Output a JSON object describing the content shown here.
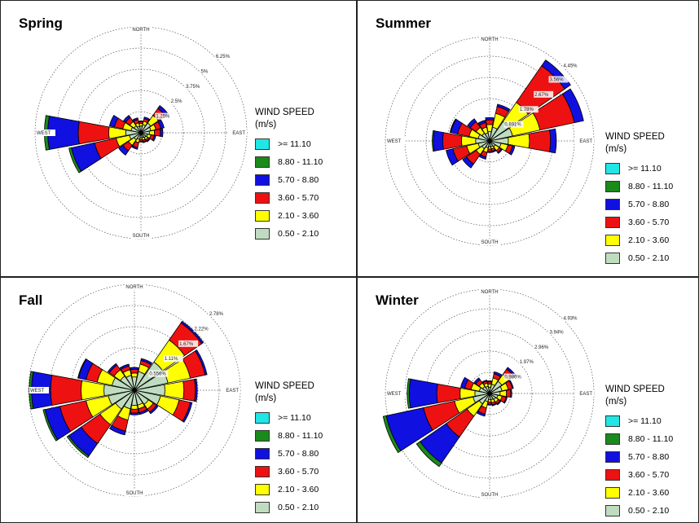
{
  "legend_title": "WIND SPEED (m/s)",
  "direction_labels": {
    "north": "NORTH",
    "south": "SOUTH",
    "east": "EAST",
    "west": "WEST"
  },
  "speed_bins": [
    {
      "label": ">= 11.10",
      "color": "#22e5e5"
    },
    {
      "label": "8.80 - 11.10",
      "color": "#1a8a1a"
    },
    {
      "label": "5.70 - 8.80",
      "color": "#1010e0"
    },
    {
      "label": "3.60 - 5.70",
      "color": "#ee1111"
    },
    {
      "label": "2.10 - 3.60",
      "color": "#ffff00"
    },
    {
      "label": "0.50 - 2.10",
      "color": "#c0dcc0"
    }
  ],
  "chart_data": [
    {
      "type": "windrose",
      "title": "Spring",
      "ring_labels": [
        "1.25%",
        "2.5%",
        "3.75%",
        "5%",
        "6.25%"
      ],
      "ring_values": [
        1.25,
        2.5,
        3.75,
        5,
        6.25
      ],
      "sectors": 16,
      "bins": [
        "0.50 - 2.10",
        "2.10 - 3.60",
        "3.60 - 5.70",
        "5.70 - 8.80",
        "8.80 - 11.10",
        ">= 11.10"
      ],
      "directions": [
        {
          "dir": "N",
          "values": [
            0.4,
            0.15,
            0.1,
            0.05,
            0,
            0
          ]
        },
        {
          "dir": "NNE",
          "values": [
            0.5,
            0.2,
            0.15,
            0.1,
            0,
            0
          ]
        },
        {
          "dir": "NE",
          "values": [
            0.7,
            0.55,
            0.5,
            0.2,
            0,
            0
          ]
        },
        {
          "dir": "ENE",
          "values": [
            0.6,
            0.3,
            0.3,
            0.2,
            0,
            0
          ]
        },
        {
          "dir": "E",
          "values": [
            0.5,
            0.3,
            0.35,
            0.15,
            0,
            0
          ]
        },
        {
          "dir": "ESE",
          "values": [
            0.4,
            0.2,
            0.2,
            0.1,
            0,
            0
          ]
        },
        {
          "dir": "SE",
          "values": [
            0.35,
            0.15,
            0.1,
            0.05,
            0,
            0
          ]
        },
        {
          "dir": "SSE",
          "values": [
            0.3,
            0.15,
            0.1,
            0.05,
            0,
            0
          ]
        },
        {
          "dir": "S",
          "values": [
            0.3,
            0.1,
            0.1,
            0.05,
            0,
            0
          ]
        },
        {
          "dir": "SSW",
          "values": [
            0.4,
            0.2,
            0.3,
            0.1,
            0,
            0
          ]
        },
        {
          "dir": "SW",
          "values": [
            0.5,
            0.4,
            0.4,
            0.3,
            0,
            0
          ]
        },
        {
          "dir": "WSW",
          "values": [
            0.7,
            0.8,
            1.3,
            1.4,
            0.15,
            0
          ]
        },
        {
          "dir": "W",
          "values": [
            0.9,
            1.0,
            1.8,
            1.8,
            0.2,
            0
          ]
        },
        {
          "dir": "WNW",
          "values": [
            0.6,
            0.5,
            0.5,
            0.3,
            0,
            0
          ]
        },
        {
          "dir": "NW",
          "values": [
            0.5,
            0.3,
            0.3,
            0.15,
            0,
            0
          ]
        },
        {
          "dir": "NNW",
          "values": [
            0.4,
            0.2,
            0.2,
            0.1,
            0,
            0
          ]
        }
      ]
    },
    {
      "type": "windrose",
      "title": "Summer",
      "ring_labels": [
        "0.891%",
        "1.78%",
        "2.67%",
        "3.56%",
        "4.45%"
      ],
      "ring_values": [
        0.891,
        1.78,
        2.67,
        3.56,
        4.45
      ],
      "sectors": 16,
      "bins": [
        "0.50 - 2.10",
        "2.10 - 3.60",
        "3.60 - 5.70",
        "5.70 - 8.80",
        "8.80 - 11.10",
        ">= 11.10"
      ],
      "directions": [
        {
          "dir": "N",
          "values": [
            0.4,
            0.3,
            0.2,
            0.1,
            0,
            0
          ]
        },
        {
          "dir": "NNE",
          "values": [
            0.6,
            0.6,
            0.3,
            0.1,
            0,
            0
          ]
        },
        {
          "dir": "NE",
          "values": [
            1.0,
            1.0,
            1.9,
            0.3,
            0,
            0
          ]
        },
        {
          "dir": "ENE",
          "values": [
            1.0,
            1.2,
            1.5,
            0.4,
            0,
            0
          ]
        },
        {
          "dir": "E",
          "values": [
            0.8,
            0.9,
            0.9,
            0.25,
            0,
            0
          ]
        },
        {
          "dir": "ESE",
          "values": [
            0.5,
            0.3,
            0.2,
            0.1,
            0,
            0
          ]
        },
        {
          "dir": "SE",
          "values": [
            0.3,
            0.2,
            0.1,
            0.05,
            0,
            0
          ]
        },
        {
          "dir": "SSE",
          "values": [
            0.25,
            0.1,
            0.1,
            0.05,
            0,
            0
          ]
        },
        {
          "dir": "S",
          "values": [
            0.25,
            0.1,
            0.1,
            0.05,
            0,
            0
          ]
        },
        {
          "dir": "SSW",
          "values": [
            0.3,
            0.2,
            0.2,
            0.1,
            0,
            0
          ]
        },
        {
          "dir": "SW",
          "values": [
            0.4,
            0.3,
            0.5,
            0.2,
            0,
            0
          ]
        },
        {
          "dir": "WSW",
          "values": [
            0.5,
            0.5,
            0.6,
            0.3,
            0,
            0
          ]
        },
        {
          "dir": "W",
          "values": [
            0.6,
            0.6,
            0.8,
            0.4,
            0.05,
            0
          ]
        },
        {
          "dir": "WNW",
          "values": [
            0.5,
            0.4,
            0.5,
            0.3,
            0.03,
            0
          ]
        },
        {
          "dir": "NW",
          "values": [
            0.4,
            0.3,
            0.3,
            0.15,
            0,
            0
          ]
        },
        {
          "dir": "NNW",
          "values": [
            0.35,
            0.25,
            0.2,
            0.1,
            0,
            0
          ]
        }
      ]
    },
    {
      "type": "windrose",
      "title": "Fall",
      "ring_labels": [
        "0.556%",
        "1.11%",
        "1.67%",
        "2.22%",
        "2.78%"
      ],
      "ring_values": [
        0.556,
        1.11,
        1.67,
        2.22,
        2.78
      ],
      "sectors": 16,
      "bins": [
        "0.50 - 2.10",
        "2.10 - 3.60",
        "3.60 - 5.70",
        "5.70 - 8.80",
        "8.80 - 11.10",
        ">= 11.10"
      ],
      "directions": [
        {
          "dir": "N",
          "values": [
            0.35,
            0.1,
            0.1,
            0.05,
            0,
            0
          ]
        },
        {
          "dir": "NNE",
          "values": [
            0.5,
            0.2,
            0.1,
            0.05,
            0,
            0
          ]
        },
        {
          "dir": "NE",
          "values": [
            0.9,
            0.7,
            0.55,
            0.05,
            0,
            0
          ]
        },
        {
          "dir": "ENE",
          "values": [
            0.9,
            0.6,
            0.4,
            0.05,
            0,
            0
          ]
        },
        {
          "dir": "E",
          "values": [
            0.8,
            0.5,
            0.3,
            0.05,
            0,
            0
          ]
        },
        {
          "dir": "ESE",
          "values": [
            0.7,
            0.5,
            0.3,
            0.05,
            0,
            0
          ]
        },
        {
          "dir": "SE",
          "values": [
            0.45,
            0.15,
            0.1,
            0.05,
            0,
            0
          ]
        },
        {
          "dir": "SSE",
          "values": [
            0.4,
            0.1,
            0.1,
            0.05,
            0,
            0
          ]
        },
        {
          "dir": "S",
          "values": [
            0.4,
            0.1,
            0.1,
            0.05,
            0,
            0
          ]
        },
        {
          "dir": "SSW",
          "values": [
            0.5,
            0.3,
            0.3,
            0.1,
            0,
            0
          ]
        },
        {
          "dir": "SW",
          "values": [
            0.6,
            0.5,
            0.6,
            0.4,
            0.05,
            0
          ]
        },
        {
          "dir": "WSW",
          "values": [
            0.7,
            0.6,
            0.7,
            0.4,
            0.05,
            0
          ]
        },
        {
          "dir": "W",
          "values": [
            0.8,
            0.6,
            0.8,
            0.5,
            0.06,
            0
          ]
        },
        {
          "dir": "WNW",
          "values": [
            0.6,
            0.4,
            0.3,
            0.2,
            0.02,
            0
          ]
        },
        {
          "dir": "NW",
          "values": [
            0.45,
            0.2,
            0.15,
            0.05,
            0,
            0
          ]
        },
        {
          "dir": "NNW",
          "values": [
            0.4,
            0.15,
            0.1,
            0.05,
            0,
            0
          ]
        }
      ]
    },
    {
      "type": "windrose",
      "title": "Winter",
      "ring_labels": [
        "0.986%",
        "1.97%",
        "2.96%",
        "3.94%",
        "4.93%"
      ],
      "ring_values": [
        0.986,
        1.97,
        2.96,
        3.94,
        4.93
      ],
      "sectors": 16,
      "bins": [
        "0.50 - 2.10",
        "2.10 - 3.60",
        "3.60 - 5.70",
        "5.70 - 8.80",
        "8.80 - 11.10",
        ">= 11.10"
      ],
      "directions": [
        {
          "dir": "N",
          "values": [
            0.3,
            0.15,
            0.1,
            0.05,
            0,
            0
          ]
        },
        {
          "dir": "NNE",
          "values": [
            0.45,
            0.3,
            0.2,
            0.1,
            0,
            0
          ]
        },
        {
          "dir": "NE",
          "values": [
            0.7,
            0.4,
            0.3,
            0.1,
            0,
            0
          ]
        },
        {
          "dir": "ENE",
          "values": [
            0.6,
            0.3,
            0.2,
            0.05,
            0,
            0
          ]
        },
        {
          "dir": "E",
          "values": [
            0.5,
            0.3,
            0.2,
            0.05,
            0,
            0
          ]
        },
        {
          "dir": "ESE",
          "values": [
            0.4,
            0.2,
            0.2,
            0.05,
            0,
            0
          ]
        },
        {
          "dir": "SE",
          "values": [
            0.35,
            0.15,
            0.1,
            0.05,
            0,
            0
          ]
        },
        {
          "dir": "SSE",
          "values": [
            0.3,
            0.15,
            0.1,
            0.05,
            0,
            0
          ]
        },
        {
          "dir": "S",
          "values": [
            0.3,
            0.1,
            0.1,
            0.05,
            0,
            0
          ]
        },
        {
          "dir": "SSW",
          "values": [
            0.4,
            0.3,
            0.3,
            0.1,
            0,
            0
          ]
        },
        {
          "dir": "SW",
          "values": [
            0.6,
            0.7,
            1.2,
            1.5,
            0.2,
            0
          ]
        },
        {
          "dir": "WSW",
          "values": [
            0.8,
            0.9,
            1.5,
            1.8,
            0.15,
            0
          ]
        },
        {
          "dir": "W",
          "values": [
            0.7,
            0.7,
            1.1,
            1.3,
            0.1,
            0
          ]
        },
        {
          "dir": "WNW",
          "values": [
            0.5,
            0.4,
            0.3,
            0.2,
            0,
            0
          ]
        },
        {
          "dir": "NW",
          "values": [
            0.4,
            0.2,
            0.2,
            0.1,
            0,
            0
          ]
        },
        {
          "dir": "NNW",
          "values": [
            0.35,
            0.15,
            0.1,
            0.05,
            0,
            0
          ]
        }
      ]
    }
  ]
}
